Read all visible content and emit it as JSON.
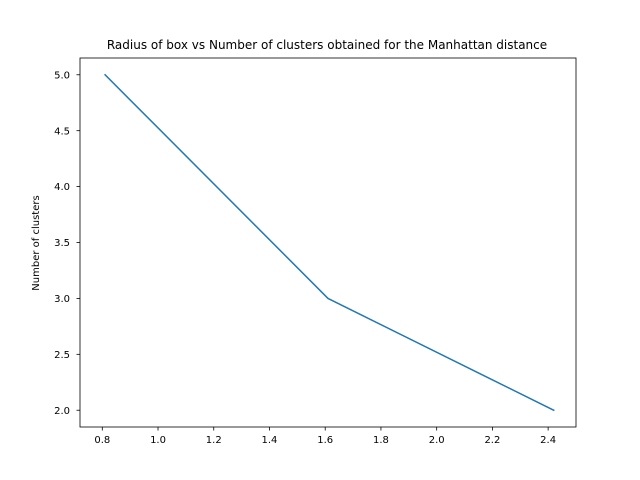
{
  "chart_data": {
    "type": "line",
    "title": "Radius of box vs Number of clusters obtained for the Manhattan distance",
    "xlabel": "",
    "ylabel": "Number of clusters",
    "xlim": [
      0.72,
      2.5
    ],
    "ylim": [
      1.85,
      5.15
    ],
    "xticks": [
      0.8,
      1.0,
      1.2,
      1.4,
      1.6,
      1.8,
      2.0,
      2.2,
      2.4
    ],
    "xtick_labels": [
      "0.8",
      "1.0",
      "1.2",
      "1.4",
      "1.6",
      "1.8",
      "2.0",
      "2.2",
      "2.4"
    ],
    "yticks": [
      2.0,
      2.5,
      3.0,
      3.5,
      4.0,
      4.5,
      5.0
    ],
    "ytick_labels": [
      "2.0",
      "2.5",
      "3.0",
      "3.5",
      "4.0",
      "4.5",
      "5.0"
    ],
    "grid": false,
    "series": [
      {
        "x": [
          0.81,
          1.61,
          2.42
        ],
        "y": [
          5,
          3,
          2
        ],
        "color": "#1f77b4"
      }
    ]
  }
}
